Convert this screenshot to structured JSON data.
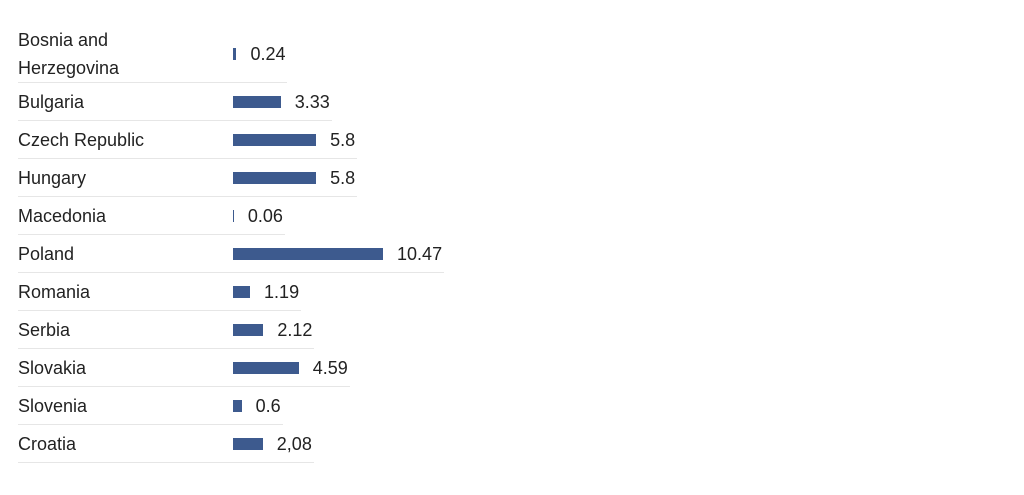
{
  "chart_data": {
    "type": "bar",
    "orientation": "horizontal",
    "color": "#3d5a8e",
    "categories": [
      "Bosnia and Herzegovina",
      "Bulgaria",
      "Czech Republic",
      "Hungary",
      "Macedonia",
      "Poland",
      "Romania",
      "Serbia",
      "Slovakia",
      "Slovenia",
      "Croatia"
    ],
    "values": [
      0.24,
      3.33,
      5.8,
      5.8,
      0.06,
      10.47,
      1.19,
      2.12,
      4.59,
      0.6,
      2.08
    ],
    "value_labels": [
      "0.24",
      "3.33",
      "5.8",
      "5.8",
      "0.06",
      "10.47",
      "1.19",
      "2.12",
      "4.59",
      "0.6",
      "2,08"
    ]
  }
}
